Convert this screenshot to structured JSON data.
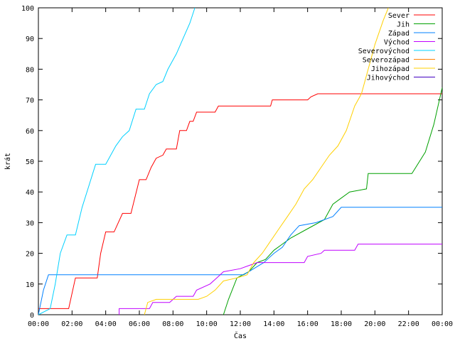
{
  "chart_data": {
    "type": "line",
    "title": "",
    "xlabel": "Čas",
    "ylabel": "krát",
    "xlim": [
      0,
      24
    ],
    "ylim": [
      0,
      100
    ],
    "x_ticks": [
      "00:00",
      "02:00",
      "04:00",
      "06:00",
      "08:00",
      "10:00",
      "12:00",
      "14:00",
      "16:00",
      "18:00",
      "20:00",
      "22:00",
      "00:00"
    ],
    "y_ticks": [
      0,
      10,
      20,
      30,
      40,
      50,
      60,
      70,
      80,
      90,
      100
    ],
    "grid": false,
    "legend_position": "top-right",
    "series": [
      {
        "name": "Sever",
        "color": "#ff0000",
        "points": [
          [
            0,
            2
          ],
          [
            1.8,
            2
          ],
          [
            2.2,
            12
          ],
          [
            3.5,
            12
          ],
          [
            3.7,
            20
          ],
          [
            4,
            27
          ],
          [
            4.5,
            27
          ],
          [
            5,
            33
          ],
          [
            5.5,
            33
          ],
          [
            6,
            44
          ],
          [
            6.4,
            44
          ],
          [
            6.7,
            48
          ],
          [
            7,
            51
          ],
          [
            7.4,
            52
          ],
          [
            7.6,
            54
          ],
          [
            8.2,
            54
          ],
          [
            8.4,
            60
          ],
          [
            8.8,
            60
          ],
          [
            9.0,
            63
          ],
          [
            9.2,
            63
          ],
          [
            9.4,
            66
          ],
          [
            10.5,
            66
          ],
          [
            10.7,
            68
          ],
          [
            13.8,
            68
          ],
          [
            13.9,
            70
          ],
          [
            16,
            70
          ],
          [
            16.2,
            71
          ],
          [
            16.6,
            72
          ],
          [
            24,
            72
          ]
        ]
      },
      {
        "name": "Jih",
        "color": "#00a000",
        "points": [
          [
            11.0,
            0
          ],
          [
            11.3,
            5
          ],
          [
            11.8,
            12
          ],
          [
            12.5,
            14
          ],
          [
            13.0,
            17
          ],
          [
            13.5,
            18
          ],
          [
            14.0,
            21
          ],
          [
            14.5,
            23
          ],
          [
            15.0,
            25
          ],
          [
            16.0,
            28
          ],
          [
            17.0,
            31
          ],
          [
            17.5,
            36
          ],
          [
            18,
            38
          ],
          [
            18.5,
            40
          ],
          [
            19.5,
            41
          ],
          [
            19.6,
            46
          ],
          [
            22.2,
            46
          ],
          [
            23,
            53
          ],
          [
            23.5,
            62
          ],
          [
            24,
            74
          ]
        ]
      },
      {
        "name": "Západ",
        "color": "#0080ff",
        "points": [
          [
            0,
            0
          ],
          [
            0.3,
            8
          ],
          [
            0.6,
            13
          ],
          [
            11.5,
            13
          ],
          [
            12.2,
            13
          ],
          [
            13.4,
            17
          ],
          [
            14.0,
            20
          ],
          [
            14.5,
            22
          ],
          [
            15.0,
            26
          ],
          [
            15.5,
            29
          ],
          [
            16.5,
            30
          ],
          [
            17.5,
            32
          ],
          [
            18.0,
            35
          ],
          [
            24,
            35
          ]
        ]
      },
      {
        "name": "Východ",
        "color": "#c000ff",
        "points": [
          [
            4.8,
            0
          ],
          [
            4.8,
            2
          ],
          [
            6.6,
            2
          ],
          [
            6.8,
            4
          ],
          [
            7.8,
            4
          ],
          [
            8.2,
            6
          ],
          [
            9.2,
            6
          ],
          [
            9.4,
            8
          ],
          [
            10.2,
            10
          ],
          [
            10.6,
            12
          ],
          [
            11.0,
            14
          ],
          [
            12.0,
            15
          ],
          [
            12.5,
            16
          ],
          [
            13.0,
            17
          ],
          [
            15.8,
            17
          ],
          [
            16.0,
            19
          ],
          [
            16.8,
            20
          ],
          [
            17.0,
            21
          ],
          [
            18.8,
            21
          ],
          [
            19.0,
            23
          ],
          [
            24,
            23
          ]
        ]
      },
      {
        "name": "Severovýchod",
        "color": "#00d0ff",
        "points": [
          [
            0,
            0
          ],
          [
            0.7,
            2
          ],
          [
            1.0,
            10
          ],
          [
            1.3,
            20
          ],
          [
            1.7,
            26
          ],
          [
            2.2,
            26
          ],
          [
            2.6,
            35
          ],
          [
            3.0,
            42
          ],
          [
            3.4,
            49
          ],
          [
            4.0,
            49
          ],
          [
            4.6,
            55
          ],
          [
            5.0,
            58
          ],
          [
            5.4,
            60
          ],
          [
            5.8,
            67
          ],
          [
            6.3,
            67
          ],
          [
            6.6,
            72
          ],
          [
            7.0,
            75
          ],
          [
            7.4,
            76
          ],
          [
            7.7,
            80
          ],
          [
            8.2,
            85
          ],
          [
            8.6,
            90
          ],
          [
            9.0,
            95
          ],
          [
            9.3,
            100
          ]
        ]
      },
      {
        "name": "Severozápad",
        "color": "#ff8000",
        "points": []
      },
      {
        "name": "Jihozápad",
        "color": "#ffd000",
        "points": [
          [
            6.3,
            0
          ],
          [
            6.5,
            4
          ],
          [
            7.0,
            5
          ],
          [
            8.0,
            5
          ],
          [
            9.5,
            5
          ],
          [
            10.0,
            6
          ],
          [
            10.5,
            8
          ],
          [
            11.0,
            11
          ],
          [
            11.8,
            12
          ],
          [
            12.4,
            13
          ],
          [
            12.8,
            17
          ],
          [
            13.3,
            20
          ],
          [
            13.8,
            24
          ],
          [
            14.3,
            28
          ],
          [
            14.8,
            32
          ],
          [
            15.3,
            36
          ],
          [
            15.8,
            41
          ],
          [
            16.3,
            44
          ],
          [
            16.8,
            48
          ],
          [
            17.3,
            52
          ],
          [
            17.8,
            55
          ],
          [
            18.3,
            60
          ],
          [
            18.8,
            68
          ],
          [
            19.2,
            72
          ],
          [
            19.6,
            80
          ],
          [
            20.0,
            88
          ],
          [
            20.5,
            96
          ],
          [
            20.8,
            100
          ]
        ]
      },
      {
        "name": "Jihovýchod",
        "color": "#4000c0",
        "points": []
      }
    ]
  }
}
